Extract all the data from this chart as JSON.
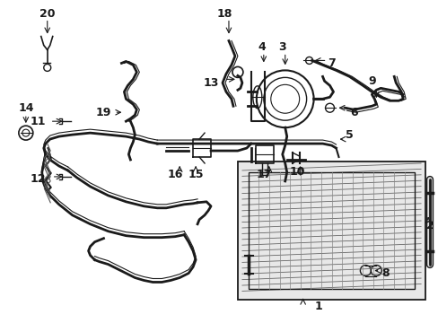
{
  "bg_color": "#ffffff",
  "line_color": "#1a1a1a",
  "lw": 1.2,
  "fig_w": 4.89,
  "fig_h": 3.6,
  "dpi": 100
}
